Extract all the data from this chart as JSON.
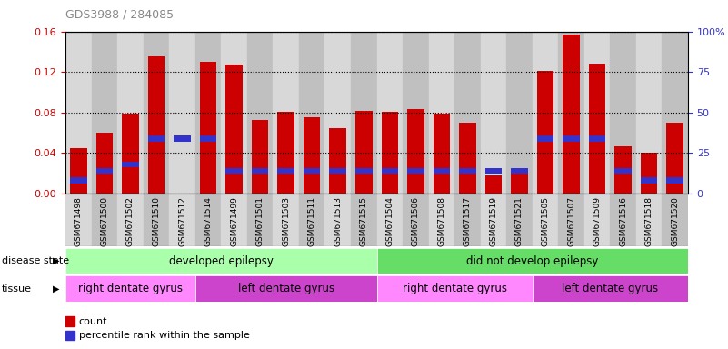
{
  "title": "GDS3988 / 284085",
  "samples": [
    "GSM671498",
    "GSM671500",
    "GSM671502",
    "GSM671510",
    "GSM671512",
    "GSM671514",
    "GSM671499",
    "GSM671501",
    "GSM671503",
    "GSM671511",
    "GSM671513",
    "GSM671515",
    "GSM671504",
    "GSM671506",
    "GSM671508",
    "GSM671517",
    "GSM671519",
    "GSM671521",
    "GSM671505",
    "GSM671507",
    "GSM671509",
    "GSM671516",
    "GSM671518",
    "GSM671520"
  ],
  "count_values": [
    0.045,
    0.06,
    0.079,
    0.135,
    0.0,
    0.13,
    0.127,
    0.073,
    0.081,
    0.075,
    0.065,
    0.082,
    0.081,
    0.083,
    0.079,
    0.07,
    0.018,
    0.022,
    0.121,
    0.157,
    0.128,
    0.047,
    0.04,
    0.07
  ],
  "percentile_rank": [
    8,
    14,
    18,
    34,
    34,
    34,
    14,
    14,
    14,
    14,
    14,
    14,
    14,
    14,
    14,
    14,
    14,
    14,
    34,
    34,
    34,
    14,
    8,
    8
  ],
  "ylim_left": [
    0,
    0.16
  ],
  "ylim_right": [
    0,
    100
  ],
  "yticks_left": [
    0,
    0.04,
    0.08,
    0.12,
    0.16
  ],
  "yticks_right": [
    0,
    25,
    50,
    75,
    100
  ],
  "bar_color": "#CC0000",
  "blue_color": "#3333CC",
  "disease_state_groups": [
    {
      "label": "developed epilepsy",
      "start": 0,
      "end": 12,
      "color": "#AAFFAA"
    },
    {
      "label": "did not develop epilepsy",
      "start": 12,
      "end": 24,
      "color": "#66DD66"
    }
  ],
  "tissue_groups": [
    {
      "label": "right dentate gyrus",
      "start": 0,
      "end": 5,
      "color": "#FF88FF"
    },
    {
      "label": "left dentate gyrus",
      "start": 5,
      "end": 12,
      "color": "#CC44CC"
    },
    {
      "label": "right dentate gyrus",
      "start": 12,
      "end": 18,
      "color": "#FF88FF"
    },
    {
      "label": "left dentate gyrus",
      "start": 18,
      "end": 24,
      "color": "#CC44CC"
    }
  ],
  "disease_state_label": "disease state",
  "tissue_label": "tissue",
  "legend_count_label": "count",
  "legend_percentile_label": "percentile rank within the sample",
  "background_color": "#FFFFFF"
}
